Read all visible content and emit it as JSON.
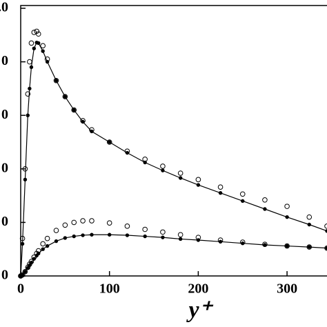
{
  "chart_data": {
    "type": "line",
    "x_label": "y⁺",
    "x": [
      0,
      2,
      5,
      8,
      10,
      12,
      15,
      18,
      20,
      25,
      30,
      40,
      50,
      60,
      70,
      80,
      100,
      120,
      140,
      160,
      180,
      200,
      225,
      250,
      275,
      300,
      325,
      345
    ],
    "series": [
      {
        "color": "#000000",
        "marker": "filled",
        "line": true,
        "values": [
          0,
          0.6,
          1.8,
          3.0,
          3.5,
          3.9,
          4.25,
          4.36,
          4.35,
          4.2,
          4.0,
          3.65,
          3.35,
          3.1,
          2.88,
          2.7,
          2.5,
          2.3,
          2.12,
          1.97,
          1.83,
          1.7,
          1.55,
          1.4,
          1.25,
          1.1,
          0.96,
          0.84
        ]
      },
      {
        "color": "#000000",
        "marker": "open",
        "line": false,
        "values": [
          0,
          0.7,
          2.0,
          3.4,
          4.0,
          4.35,
          4.55,
          4.57,
          4.52,
          4.3,
          4.05,
          3.65,
          3.35,
          3.1,
          2.9,
          2.73,
          2.5,
          2.33,
          2.18,
          2.05,
          1.92,
          1.8,
          1.66,
          1.53,
          1.42,
          1.3,
          1.1,
          0.93
        ]
      },
      {
        "color": "#000000",
        "marker": "filled",
        "line": true,
        "values": [
          0,
          0.02,
          0.08,
          0.15,
          0.2,
          0.25,
          0.32,
          0.38,
          0.42,
          0.5,
          0.56,
          0.65,
          0.71,
          0.74,
          0.76,
          0.77,
          0.77,
          0.76,
          0.74,
          0.72,
          0.69,
          0.67,
          0.64,
          0.61,
          0.58,
          0.56,
          0.54,
          0.52
        ]
      },
      {
        "color": "#000000",
        "marker": "open",
        "line": false,
        "values": [
          0,
          0.02,
          0.08,
          0.16,
          0.22,
          0.27,
          0.35,
          0.42,
          0.47,
          0.6,
          0.7,
          0.85,
          0.95,
          1.0,
          1.03,
          1.03,
          0.99,
          0.93,
          0.87,
          0.82,
          0.77,
          0.72,
          0.67,
          0.63,
          0.59,
          0.56,
          0.54,
          0.52
        ]
      }
    ],
    "xlim": [
      0,
      345
    ],
    "ylim": [
      0,
      5
    ],
    "xticks": [
      0,
      100,
      200,
      300
    ],
    "yticks": [
      {
        "value": 0,
        "label": "0"
      },
      {
        "value": 1,
        "label": "0"
      },
      {
        "value": 2,
        "label": "0"
      },
      {
        "value": 3,
        "label": "0"
      },
      {
        "value": 4,
        "label": "0"
      },
      {
        "value": 5,
        "label": ".0"
      }
    ]
  }
}
